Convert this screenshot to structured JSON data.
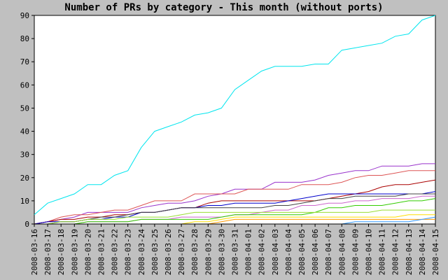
{
  "chart_data": {
    "type": "line",
    "title": "Number of PRs by category - This month (without ports)",
    "xlabel": "",
    "ylabel": "",
    "ylim": [
      0,
      90
    ],
    "yticks": [
      0,
      10,
      20,
      30,
      40,
      50,
      60,
      70,
      80,
      90
    ],
    "x": [
      "2008-03-16",
      "2008-03-17",
      "2008-03-18",
      "2008-03-19",
      "2008-03-20",
      "2008-03-21",
      "2008-03-22",
      "2008-03-23",
      "2008-03-24",
      "2008-03-25",
      "2008-03-26",
      "2008-03-27",
      "2008-03-28",
      "2008-03-29",
      "2008-03-30",
      "2008-03-31",
      "2008-04-01",
      "2008-04-02",
      "2008-04-03",
      "2008-04-04",
      "2008-04-05",
      "2008-04-06",
      "2008-04-07",
      "2008-04-08",
      "2008-04-09",
      "2008-04-10",
      "2008-04-11",
      "2008-04-12",
      "2008-04-13",
      "2008-04-14",
      "2008-04-15"
    ],
    "grid": false,
    "legend": "none",
    "colors": {
      "background": "#c0c0c0",
      "plot_area": "#ffffff",
      "axis": "#000000"
    },
    "series": [
      {
        "color": "#00e5ee",
        "values": [
          4,
          9,
          11,
          13,
          17,
          17,
          21,
          23,
          33,
          40,
          42,
          44,
          47,
          48,
          50,
          58,
          62,
          66,
          68,
          68,
          68,
          69,
          69,
          75,
          76,
          77,
          78,
          81,
          82,
          88,
          90
        ]
      },
      {
        "color": "#9933cc",
        "values": [
          0,
          1,
          2,
          3,
          5,
          5,
          5,
          5,
          7,
          8,
          9,
          9,
          10,
          12,
          13,
          15,
          15,
          15,
          18,
          18,
          18,
          19,
          21,
          22,
          23,
          23,
          25,
          25,
          25,
          26,
          26
        ]
      },
      {
        "color": "#dd5555",
        "values": [
          0,
          1,
          3,
          4,
          4,
          5,
          6,
          6,
          8,
          10,
          10,
          10,
          13,
          13,
          13,
          13,
          15,
          15,
          15,
          15,
          17,
          17,
          17,
          18,
          20,
          21,
          21,
          22,
          23,
          23,
          23
        ]
      },
      {
        "color": "#aa0000",
        "values": [
          0,
          1,
          2,
          2,
          3,
          3,
          4,
          4,
          5,
          5,
          6,
          7,
          7,
          9,
          10,
          10,
          10,
          10,
          10,
          10,
          10,
          10,
          11,
          12,
          13,
          14,
          16,
          17,
          17,
          18,
          19
        ]
      },
      {
        "color": "#0000cc",
        "values": [
          0,
          1,
          1,
          1,
          2,
          2,
          3,
          3,
          5,
          5,
          6,
          7,
          7,
          8,
          8,
          9,
          9,
          9,
          9,
          10,
          11,
          12,
          13,
          13,
          13,
          13,
          13,
          13,
          13,
          13,
          14
        ]
      },
      {
        "color": "#444444",
        "values": [
          0,
          0,
          1,
          1,
          2,
          3,
          3,
          4,
          5,
          5,
          6,
          7,
          7,
          7,
          7,
          7,
          7,
          7,
          8,
          8,
          9,
          10,
          11,
          11,
          12,
          12,
          12,
          12,
          13,
          13,
          13
        ]
      },
      {
        "color": "#cc66cc",
        "values": [
          0,
          0,
          0,
          0,
          1,
          1,
          1,
          1,
          2,
          2,
          2,
          3,
          3,
          3,
          3,
          4,
          4,
          5,
          6,
          6,
          8,
          8,
          9,
          9,
          10,
          10,
          11,
          11,
          11,
          12,
          12
        ]
      },
      {
        "color": "#33cc00",
        "values": [
          0,
          0,
          0,
          0,
          1,
          1,
          1,
          1,
          2,
          2,
          2,
          2,
          2,
          2,
          3,
          4,
          4,
          4,
          4,
          4,
          4,
          5,
          7,
          7,
          8,
          8,
          8,
          9,
          10,
          10,
          11
        ]
      },
      {
        "color": "#99dd33",
        "values": [
          0,
          0,
          1,
          1,
          2,
          2,
          2,
          3,
          3,
          3,
          3,
          4,
          5,
          5,
          5,
          5,
          5,
          5,
          5,
          5,
          5,
          5,
          5,
          5,
          5,
          5,
          6,
          6,
          6,
          6,
          6
        ]
      },
      {
        "color": "#ffdd00",
        "values": [
          0,
          0,
          0,
          0,
          0,
          0,
          0,
          0,
          0,
          0,
          0,
          0,
          1,
          1,
          2,
          3,
          3,
          3,
          3,
          3,
          3,
          3,
          3,
          3,
          3,
          3,
          3,
          3,
          4,
          4,
          4
        ]
      },
      {
        "color": "#ff9900",
        "values": [
          0,
          0,
          0,
          0,
          0,
          0,
          0,
          0,
          0,
          0,
          0,
          0,
          0,
          0,
          1,
          2,
          2,
          2,
          2,
          2,
          2,
          2,
          2,
          2,
          2,
          2,
          2,
          2,
          2,
          2,
          2
        ]
      },
      {
        "color": "#3399ff",
        "values": [
          0,
          0,
          0,
          0,
          0,
          0,
          0,
          0,
          0,
          0,
          0,
          0,
          0,
          0,
          0,
          0,
          0,
          0,
          0,
          0,
          0,
          0,
          0,
          0,
          1,
          1,
          1,
          1,
          1,
          2,
          3
        ]
      },
      {
        "color": "#000000",
        "values": [
          0,
          0,
          0,
          0,
          0,
          0,
          0,
          0,
          0,
          0,
          0,
          0,
          0,
          0,
          0,
          0,
          0,
          0,
          0,
          0,
          0,
          0,
          0,
          0,
          0,
          0,
          0,
          0,
          0,
          0,
          0
        ]
      }
    ]
  }
}
